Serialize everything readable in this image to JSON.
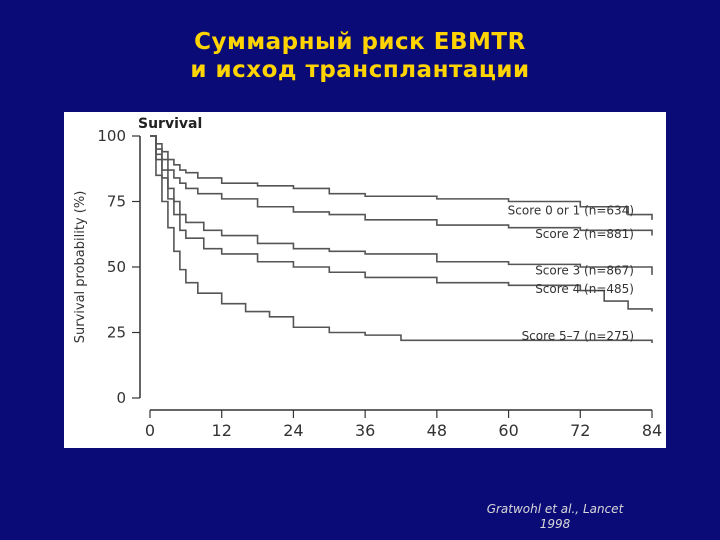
{
  "slide": {
    "title_line1": "Суммарный риск EBMTR",
    "title_line2": "и исход трансплантации",
    "citation_line1": "Gratwohl et al., Lancet",
    "citation_line2": "1998"
  },
  "colors": {
    "background": "#0b0b78",
    "title": "#ffd400",
    "citation": "#d8d8d8",
    "curve": "#555555",
    "axis": "#333333"
  },
  "chart_data": {
    "type": "line",
    "title": "Survival",
    "xlabel": "",
    "ylabel": "Survival probability (%)",
    "xlim": [
      0,
      84
    ],
    "ylim": [
      0,
      100
    ],
    "xticks": [
      0,
      12,
      24,
      36,
      48,
      60,
      72,
      84
    ],
    "yticks": [
      0,
      25,
      50,
      75,
      100
    ],
    "grid": false,
    "series": [
      {
        "name": "Score 0 or 1 (n=634)",
        "points": [
          [
            0,
            100
          ],
          [
            1,
            97
          ],
          [
            2,
            94
          ],
          [
            3,
            91
          ],
          [
            4,
            89
          ],
          [
            5,
            87
          ],
          [
            6,
            86
          ],
          [
            8,
            84
          ],
          [
            12,
            82
          ],
          [
            18,
            81
          ],
          [
            24,
            80
          ],
          [
            30,
            78
          ],
          [
            36,
            77
          ],
          [
            48,
            76
          ],
          [
            60,
            75
          ],
          [
            72,
            73
          ],
          [
            80,
            70
          ],
          [
            84,
            68
          ]
        ]
      },
      {
        "name": "Score 2 (n=881)",
        "points": [
          [
            0,
            100
          ],
          [
            1,
            95
          ],
          [
            2,
            91
          ],
          [
            3,
            87
          ],
          [
            4,
            84
          ],
          [
            5,
            82
          ],
          [
            6,
            80
          ],
          [
            8,
            78
          ],
          [
            12,
            76
          ],
          [
            18,
            73
          ],
          [
            24,
            71
          ],
          [
            30,
            70
          ],
          [
            36,
            68
          ],
          [
            48,
            66
          ],
          [
            60,
            65
          ],
          [
            72,
            64
          ],
          [
            84,
            62
          ]
        ]
      },
      {
        "name": "Score 3 (n=867)",
        "points": [
          [
            0,
            100
          ],
          [
            1,
            93
          ],
          [
            2,
            87
          ],
          [
            3,
            80
          ],
          [
            4,
            75
          ],
          [
            5,
            70
          ],
          [
            6,
            67
          ],
          [
            9,
            64
          ],
          [
            12,
            62
          ],
          [
            18,
            59
          ],
          [
            24,
            57
          ],
          [
            30,
            56
          ],
          [
            36,
            55
          ],
          [
            48,
            52
          ],
          [
            60,
            51
          ],
          [
            72,
            50
          ],
          [
            84,
            47
          ]
        ]
      },
      {
        "name": "Score 4 (n=485)",
        "points": [
          [
            0,
            100
          ],
          [
            1,
            91
          ],
          [
            2,
            84
          ],
          [
            3,
            76
          ],
          [
            4,
            70
          ],
          [
            5,
            64
          ],
          [
            6,
            61
          ],
          [
            9,
            57
          ],
          [
            12,
            55
          ],
          [
            18,
            52
          ],
          [
            24,
            50
          ],
          [
            30,
            48
          ],
          [
            36,
            46
          ],
          [
            48,
            44
          ],
          [
            60,
            43
          ],
          [
            72,
            41
          ],
          [
            76,
            37
          ],
          [
            80,
            34
          ],
          [
            84,
            33
          ]
        ]
      },
      {
        "name": "Score 5–7 (n=275)",
        "points": [
          [
            0,
            100
          ],
          [
            1,
            85
          ],
          [
            2,
            75
          ],
          [
            3,
            65
          ],
          [
            4,
            56
          ],
          [
            5,
            49
          ],
          [
            6,
            44
          ],
          [
            8,
            40
          ],
          [
            12,
            36
          ],
          [
            16,
            33
          ],
          [
            20,
            31
          ],
          [
            24,
            27
          ],
          [
            30,
            25
          ],
          [
            36,
            24
          ],
          [
            42,
            22
          ],
          [
            84,
            21
          ]
        ]
      }
    ],
    "legend": [
      {
        "label": "Score 0 or 1 (n=634)",
        "y": 72
      },
      {
        "label": "Score 2 (n=881)",
        "y": 63
      },
      {
        "label": "Score 3 (n=867)",
        "y": 49
      },
      {
        "label": "Score 4 (n=485)",
        "y": 42
      },
      {
        "label": "Score 5–7 (n=275)",
        "y": 24
      }
    ]
  }
}
